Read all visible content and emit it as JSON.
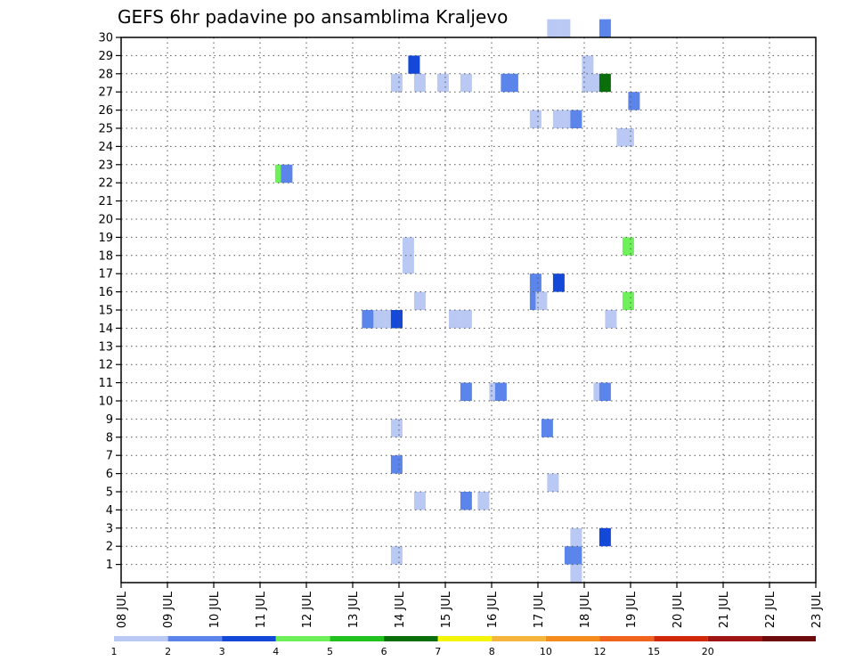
{
  "chart_data": {
    "type": "heatmap",
    "title": "GEFS 6hr padavine po ansamblima Kraljevo",
    "x_labels": [
      "08 JUL",
      "09 JUL",
      "10 JUL",
      "11 JUL",
      "12 JUL",
      "13 JUL",
      "14 JUL",
      "15 JUL",
      "16 JUL",
      "17 JUL",
      "18 JUL",
      "19 JUL",
      "20 JUL",
      "21 JUL",
      "22 JUL",
      "23 JUL"
    ],
    "xlim": [
      0,
      60
    ],
    "y_labels": [
      "1",
      "2",
      "3",
      "4",
      "5",
      "6",
      "7",
      "8",
      "9",
      "10",
      "11",
      "12",
      "13",
      "14",
      "15",
      "16",
      "17",
      "18",
      "19",
      "20",
      "21",
      "22",
      "23",
      "24",
      "25",
      "26",
      "27",
      "28",
      "29",
      "30"
    ],
    "ylim": [
      0,
      30
    ],
    "grid": true,
    "legend": {
      "position": "bottom",
      "labels": [
        "1",
        "2",
        "3",
        "4",
        "5",
        "6",
        "7",
        "8",
        "10",
        "12",
        "15",
        "20"
      ],
      "colors": [
        "#b9c9f4",
        "#5c85eb",
        "#1448d8",
        "#6ef05a",
        "#22c21e",
        "#0a6e0a",
        "#f5f50a",
        "#f5b43c",
        "#f58c1e",
        "#f0641e",
        "#d2280a",
        "#a01414",
        "#6e0a0a"
      ]
    },
    "cells": [
      {
        "step": 23.8,
        "y_from": 1,
        "y_to": 2,
        "color": "#b9c9f4"
      },
      {
        "step": 23.8,
        "y_from": 6,
        "y_to": 7,
        "color": "#5c85eb"
      },
      {
        "step": 23.8,
        "y_from": 8,
        "y_to": 9,
        "color": "#b9c9f4"
      },
      {
        "step": 23.8,
        "y_from": 14,
        "y_to": 15,
        "color": "#1448d8"
      },
      {
        "step": 23.8,
        "y_from": 27,
        "y_to": 28,
        "color": "#b9c9f4"
      },
      {
        "step": 25.8,
        "y_from": 4,
        "y_to": 5,
        "color": "#b9c9f4"
      },
      {
        "step": 25.8,
        "y_from": 15,
        "y_to": 16,
        "color": "#b9c9f4"
      },
      {
        "step": 25.8,
        "y_from": 27,
        "y_to": 28,
        "color": "#b9c9f4"
      },
      {
        "step": 27.8,
        "y_from": 27,
        "y_to": 28,
        "color": "#b9c9f4"
      },
      {
        "step": 28.8,
        "y_from": 14,
        "y_to": 15,
        "color": "#b9c9f4"
      },
      {
        "step": 29.8,
        "y_from": 4,
        "y_to": 5,
        "color": "#5c85eb"
      },
      {
        "step": 29.8,
        "y_from": 10,
        "y_to": 11,
        "color": "#5c85eb"
      },
      {
        "step": 29.8,
        "y_from": 14,
        "y_to": 15,
        "color": "#b9c9f4"
      },
      {
        "step": 29.8,
        "y_from": 27,
        "y_to": 28,
        "color": "#b9c9f4"
      },
      {
        "step": 31.3,
        "y_from": 4,
        "y_to": 5,
        "color": "#b9c9f4"
      },
      {
        "step": 32.3,
        "y_from": 10,
        "y_to": 11,
        "color": "#b9c9f4"
      },
      {
        "step": 32.8,
        "y_from": 10,
        "y_to": 11,
        "color": "#5c85eb"
      },
      {
        "step": 33.3,
        "y_from": 27,
        "y_to": 28,
        "color": "#5c85eb"
      },
      {
        "step": 33.8,
        "y_from": 27,
        "y_to": 28,
        "color": "#5c85eb"
      },
      {
        "step": 35.8,
        "y_from": 15,
        "y_to": 17,
        "color": "#5c85eb"
      },
      {
        "step": 35.8,
        "y_from": 25,
        "y_to": 26,
        "color": "#b9c9f4"
      },
      {
        "step": 36.3,
        "y_from": 15,
        "y_to": 16,
        "color": "#b9c9f4"
      },
      {
        "step": 36.8,
        "y_from": 8,
        "y_to": 9,
        "color": "#5c85eb"
      },
      {
        "step": 37.3,
        "y_from": 5,
        "y_to": 6,
        "color": "#b9c9f4"
      },
      {
        "step": 37.8,
        "y_from": 25,
        "y_to": 26,
        "color": "#b9c9f4"
      },
      {
        "step": 37.8,
        "y_from": 16,
        "y_to": 17,
        "color": "#1448d8"
      },
      {
        "step": 37.3,
        "y_from": 30,
        "y_to": 31,
        "color": "#b9c9f4"
      },
      {
        "step": 38.3,
        "y_from": 30,
        "y_to": 31,
        "color": "#b9c9f4"
      },
      {
        "step": 38.8,
        "y_from": 1,
        "y_to": 2,
        "color": "#5c85eb"
      },
      {
        "step": 38.8,
        "y_from": 25,
        "y_to": 26,
        "color": "#b9c9f4"
      },
      {
        "step": 39.3,
        "y_from": 25,
        "y_to": 26,
        "color": "#5c85eb"
      },
      {
        "step": 39.3,
        "y_from": 1,
        "y_to": 2,
        "color": "#5c85eb"
      },
      {
        "step": 39.3,
        "y_from": 2,
        "y_to": 3,
        "color": "#b9c9f4"
      },
      {
        "step": 39.3,
        "y_from": 0,
        "y_to": 1,
        "color": "#b9c9f4"
      },
      {
        "step": 40.3,
        "y_from": 27,
        "y_to": 29,
        "color": "#b9c9f4"
      },
      {
        "step": 40.8,
        "y_from": 27,
        "y_to": 28,
        "color": "#b9c9f4"
      },
      {
        "step": 41.3,
        "y_from": 10,
        "y_to": 11,
        "color": "#b9c9f4"
      },
      {
        "step": 41.8,
        "y_from": 10,
        "y_to": 11,
        "color": "#5c85eb"
      },
      {
        "step": 41.8,
        "y_from": 2,
        "y_to": 3,
        "color": "#1448d8"
      },
      {
        "step": 41.8,
        "y_from": 27,
        "y_to": 28,
        "color": "#0a6e0a"
      },
      {
        "step": 41.8,
        "y_from": 30,
        "y_to": 31,
        "color": "#5c85eb"
      },
      {
        "step": 42.3,
        "y_from": 14,
        "y_to": 15,
        "color": "#b9c9f4"
      },
      {
        "step": 43.3,
        "y_from": 24,
        "y_to": 25,
        "color": "#b9c9f4"
      },
      {
        "step": 43.8,
        "y_from": 24,
        "y_to": 25,
        "color": "#b9c9f4"
      },
      {
        "step": 43.8,
        "y_from": 18,
        "y_to": 19,
        "color": "#6ef05a"
      },
      {
        "step": 43.8,
        "y_from": 15,
        "y_to": 16,
        "color": "#6ef05a"
      },
      {
        "step": 44.3,
        "y_from": 26,
        "y_to": 27,
        "color": "#5c85eb"
      },
      {
        "step": 13.8,
        "y_from": 22,
        "y_to": 23,
        "color": "#6ef05a"
      },
      {
        "step": 14.3,
        "y_from": 22,
        "y_to": 23,
        "color": "#5c85eb"
      },
      {
        "step": 21.3,
        "y_from": 14,
        "y_to": 15,
        "color": "#5c85eb"
      },
      {
        "step": 22.3,
        "y_from": 14,
        "y_to": 15,
        "color": "#b9c9f4"
      },
      {
        "step": 23.3,
        "y_from": 14,
        "y_to": 15,
        "color": "#b9c9f4"
      },
      {
        "step": 23.8,
        "y_from": 14,
        "y_to": 15,
        "color": "#1448d8"
      },
      {
        "step": 24.8,
        "y_from": 17,
        "y_to": 19,
        "color": "#b9c9f4"
      },
      {
        "step": 25.3,
        "y_from": 28,
        "y_to": 29,
        "color": "#1448d8"
      }
    ]
  }
}
